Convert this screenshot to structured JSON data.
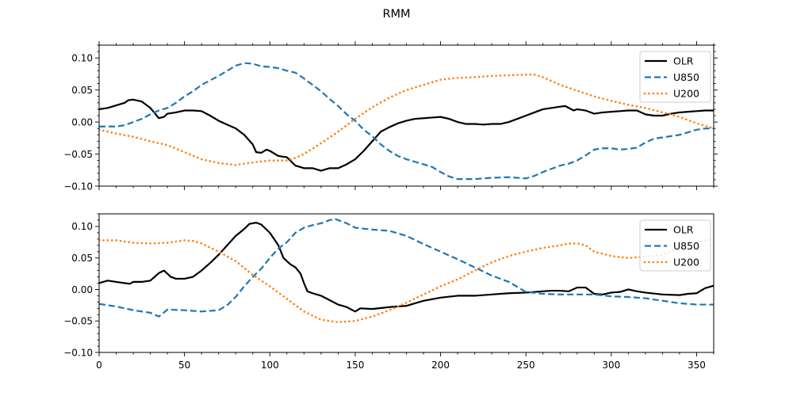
{
  "chart_data": {
    "type": "line",
    "title": "RMM",
    "subplots": [
      {
        "name": "panel-1",
        "xlim": [
          0,
          360
        ],
        "ylim": [
          -0.1,
          0.12
        ],
        "xticks": [],
        "yticks": [
          "0.10",
          "0.05",
          "0.00",
          "−0.05",
          "−0.10"
        ],
        "ytick_values": [
          0.1,
          0.05,
          0.0,
          -0.05,
          -0.1
        ],
        "legend_position": "upper right",
        "series": [
          {
            "name": "OLR",
            "style": "solid",
            "color": "#000000",
            "x": [
              0,
              5,
              10,
              15,
              17,
              20,
              25,
              30,
              35,
              38,
              40,
              45,
              50,
              55,
              60,
              65,
              70,
              75,
              80,
              85,
              90,
              92,
              95,
              98,
              100,
              105,
              110,
              115,
              120,
              125,
              130,
              135,
              140,
              145,
              150,
              155,
              160,
              165,
              170,
              175,
              180,
              185,
              190,
              195,
              200,
              205,
              210,
              215,
              220,
              225,
              230,
              235,
              240,
              245,
              250,
              255,
              260,
              265,
              270,
              273,
              278,
              280,
              285,
              290,
              295,
              300,
              305,
              310,
              315,
              320,
              325,
              330,
              335,
              340,
              345,
              350,
              355,
              360
            ],
            "y": [
              0.02,
              0.022,
              0.026,
              0.03,
              0.034,
              0.035,
              0.032,
              0.022,
              0.006,
              0.008,
              0.013,
              0.015,
              0.018,
              0.018,
              0.017,
              0.01,
              0.002,
              -0.004,
              -0.01,
              -0.02,
              -0.035,
              -0.047,
              -0.048,
              -0.043,
              -0.045,
              -0.053,
              -0.055,
              -0.068,
              -0.072,
              -0.072,
              -0.076,
              -0.072,
              -0.072,
              -0.066,
              -0.058,
              -0.045,
              -0.03,
              -0.015,
              -0.008,
              -0.002,
              0.002,
              0.005,
              0.006,
              0.007,
              0.008,
              0.005,
              0.0,
              -0.003,
              -0.003,
              -0.004,
              -0.003,
              -0.003,
              0.0,
              0.005,
              0.01,
              0.015,
              0.02,
              0.022,
              0.024,
              0.025,
              0.018,
              0.02,
              0.018,
              0.013,
              0.015,
              0.016,
              0.017,
              0.018,
              0.018,
              0.012,
              0.01,
              0.01,
              0.013,
              0.015,
              0.016,
              0.017,
              0.018,
              0.018
            ]
          },
          {
            "name": "U850",
            "style": "dashed",
            "color": "#1f77b4",
            "x": [
              0,
              10,
              15,
              20,
              25,
              30,
              35,
              40,
              45,
              50,
              55,
              60,
              65,
              70,
              75,
              80,
              85,
              90,
              95,
              100,
              105,
              110,
              115,
              120,
              125,
              130,
              135,
              140,
              145,
              150,
              155,
              160,
              165,
              170,
              175,
              180,
              185,
              190,
              195,
              200,
              205,
              210,
              220,
              230,
              240,
              245,
              250,
              255,
              260,
              265,
              270,
              275,
              280,
              285,
              290,
              295,
              300,
              305,
              310,
              315,
              320,
              325,
              330,
              335,
              340,
              345,
              350,
              355,
              360
            ],
            "y": [
              -0.007,
              -0.007,
              -0.005,
              0.0,
              0.005,
              0.012,
              0.018,
              0.022,
              0.03,
              0.04,
              0.048,
              0.058,
              0.065,
              0.072,
              0.08,
              0.088,
              0.092,
              0.091,
              0.087,
              0.086,
              0.084,
              0.08,
              0.077,
              0.068,
              0.058,
              0.048,
              0.036,
              0.025,
              0.012,
              0.002,
              -0.012,
              -0.022,
              -0.035,
              -0.045,
              -0.053,
              -0.058,
              -0.062,
              -0.066,
              -0.07,
              -0.078,
              -0.085,
              -0.089,
              -0.089,
              -0.087,
              -0.086,
              -0.087,
              -0.088,
              -0.084,
              -0.078,
              -0.073,
              -0.068,
              -0.065,
              -0.06,
              -0.052,
              -0.043,
              -0.041,
              -0.041,
              -0.043,
              -0.042,
              -0.04,
              -0.032,
              -0.026,
              -0.024,
              -0.022,
              -0.02,
              -0.016,
              -0.012,
              -0.01,
              -0.01
            ]
          },
          {
            "name": "U200",
            "style": "dotted",
            "color": "#ff7f0e",
            "x": [
              0,
              10,
              20,
              30,
              40,
              50,
              60,
              70,
              80,
              90,
              100,
              110,
              115,
              120,
              130,
              140,
              150,
              160,
              170,
              180,
              190,
              200,
              210,
              220,
              230,
              240,
              250,
              255,
              260,
              270,
              280,
              290,
              300,
              310,
              320,
              330,
              340,
              350,
              360
            ],
            "y": [
              -0.012,
              -0.018,
              -0.023,
              -0.03,
              -0.036,
              -0.047,
              -0.058,
              -0.064,
              -0.067,
              -0.063,
              -0.06,
              -0.06,
              -0.056,
              -0.05,
              -0.033,
              -0.015,
              0.005,
              0.023,
              0.038,
              0.05,
              0.058,
              0.066,
              0.069,
              0.07,
              0.072,
              0.073,
              0.074,
              0.074,
              0.07,
              0.058,
              0.049,
              0.04,
              0.033,
              0.027,
              0.022,
              0.015,
              0.008,
              -0.002,
              -0.01
            ]
          }
        ]
      },
      {
        "name": "panel-2",
        "xlim": [
          0,
          360
        ],
        "ylim": [
          -0.1,
          0.12
        ],
        "xticks": [
          "0",
          "50",
          "100",
          "150",
          "200",
          "250",
          "300",
          "350"
        ],
        "xtick_values": [
          0,
          50,
          100,
          150,
          200,
          250,
          300,
          350
        ],
        "yticks": [
          "0.10",
          "0.05",
          "0.00",
          "−0.05",
          "−0.10"
        ],
        "ytick_values": [
          0.1,
          0.05,
          0.0,
          -0.05,
          -0.1
        ],
        "legend_position": "upper right",
        "series": [
          {
            "name": "OLR",
            "style": "solid",
            "color": "#000000",
            "x": [
              0,
              5,
              10,
              15,
              18,
              20,
              25,
              30,
              35,
              38,
              42,
              45,
              50,
              55,
              60,
              65,
              70,
              75,
              80,
              85,
              88,
              92,
              95,
              100,
              105,
              108,
              112,
              115,
              118,
              120,
              122,
              125,
              130,
              135,
              140,
              145,
              150,
              153,
              160,
              170,
              180,
              190,
              200,
              210,
              220,
              230,
              240,
              250,
              260,
              265,
              270,
              275,
              280,
              285,
              290,
              295,
              300,
              305,
              310,
              315,
              320,
              330,
              340,
              345,
              350,
              355,
              360
            ],
            "y": [
              0.01,
              0.014,
              0.012,
              0.01,
              0.009,
              0.012,
              0.012,
              0.014,
              0.026,
              0.03,
              0.02,
              0.017,
              0.017,
              0.02,
              0.03,
              0.042,
              0.055,
              0.07,
              0.085,
              0.096,
              0.104,
              0.106,
              0.103,
              0.09,
              0.07,
              0.05,
              0.04,
              0.035,
              0.025,
              0.01,
              -0.003,
              -0.006,
              -0.01,
              -0.017,
              -0.024,
              -0.028,
              -0.035,
              -0.03,
              -0.031,
              -0.028,
              -0.026,
              -0.018,
              -0.013,
              -0.01,
              -0.01,
              -0.008,
              -0.006,
              -0.005,
              -0.003,
              -0.002,
              -0.002,
              -0.003,
              0.003,
              0.003,
              -0.007,
              -0.008,
              -0.005,
              -0.004,
              0.0,
              -0.003,
              -0.005,
              -0.008,
              -0.009,
              -0.007,
              -0.006,
              0.002,
              0.006
            ]
          },
          {
            "name": "U850",
            "style": "dashed",
            "color": "#1f77b4",
            "x": [
              0,
              10,
              20,
              30,
              35,
              40,
              50,
              60,
              70,
              75,
              80,
              85,
              90,
              95,
              100,
              105,
              110,
              115,
              120,
              125,
              130,
              135,
              138,
              140,
              145,
              150,
              160,
              170,
              180,
              190,
              200,
              210,
              220,
              230,
              240,
              245,
              250,
              260,
              270,
              280,
              290,
              300,
              310,
              320,
              330,
              340,
              350,
              360
            ],
            "y": [
              -0.023,
              -0.027,
              -0.033,
              -0.037,
              -0.043,
              -0.032,
              -0.033,
              -0.035,
              -0.033,
              -0.025,
              -0.012,
              0.005,
              0.02,
              0.033,
              0.05,
              0.065,
              0.075,
              0.09,
              0.098,
              0.102,
              0.105,
              0.11,
              0.112,
              0.11,
              0.105,
              0.098,
              0.095,
              0.093,
              0.085,
              0.072,
              0.06,
              0.048,
              0.035,
              0.022,
              0.012,
              0.004,
              -0.004,
              -0.007,
              -0.008,
              -0.008,
              -0.008,
              -0.011,
              -0.012,
              -0.014,
              -0.018,
              -0.022,
              -0.024,
              -0.024
            ]
          },
          {
            "name": "U200",
            "style": "dotted",
            "color": "#ff7f0e",
            "x": [
              0,
              10,
              20,
              30,
              40,
              50,
              55,
              60,
              70,
              80,
              90,
              100,
              110,
              120,
              130,
              140,
              150,
              160,
              170,
              180,
              190,
              200,
              210,
              220,
              230,
              240,
              250,
              260,
              270,
              275,
              280,
              285,
              290,
              300,
              310,
              320,
              330,
              340,
              350,
              360
            ],
            "y": [
              0.078,
              0.078,
              0.074,
              0.073,
              0.074,
              0.078,
              0.077,
              0.073,
              0.06,
              0.045,
              0.023,
              0.005,
              -0.015,
              -0.035,
              -0.048,
              -0.052,
              -0.05,
              -0.043,
              -0.033,
              -0.021,
              -0.008,
              0.005,
              0.016,
              0.03,
              0.043,
              0.053,
              0.06,
              0.066,
              0.07,
              0.073,
              0.073,
              0.07,
              0.06,
              0.053,
              0.05,
              0.052,
              0.055,
              0.065,
              0.075,
              0.08
            ]
          }
        ]
      }
    ]
  }
}
